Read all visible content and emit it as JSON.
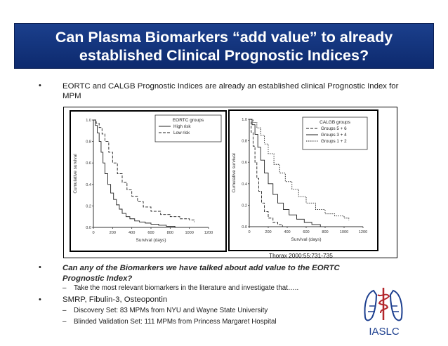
{
  "title": {
    "line1": "Can Plasma Biomarkers “add value” to already",
    "line2": "established Clinical Prognostic Indices?"
  },
  "bullets": {
    "b1": "EORTC and CALGB Prognostic Indices are already an established clinical Prognostic Index for MPM",
    "b2_line1": "Can any of the Biomarkers we have talked about add value to the EORTC",
    "b2_line2": "Prognostic Index?",
    "b2_sub": "Take the most relevant biomarkers in the literature  and investigate that…..",
    "b3": "SMRP, Fibulin-3, Osteopontin",
    "b3_sub1": "Discovery Set: 83 MPMs from NYU and Wayne State University",
    "b3_sub2": "Blinded Validation Set: 111 MPMs from Princess Margaret Hospital",
    "bullet_char": "•",
    "dash_char": "–"
  },
  "citation": "Thorax 2000;55:731-735",
  "logo_text": "IASLC",
  "colors": {
    "title_bg": "#12337a",
    "title_text": "#ffffff",
    "logo_red": "#b3262b",
    "logo_blue": "#1d3f8f"
  },
  "chart_data": [
    {
      "type": "line",
      "legend_title": "EORTC groups",
      "legend_position": "top-right",
      "xlabel": "Survival (days)",
      "ylabel": "Cumulative survival",
      "x_ticks": [
        "0",
        "200",
        "400",
        "600",
        "800",
        "1000",
        "1200"
      ],
      "y_ticks": [
        "0.0",
        "0.2",
        "0.4",
        "0.6",
        "0.8",
        "1.0"
      ],
      "xlim": [
        0,
        1200
      ],
      "ylim": [
        0,
        1
      ],
      "series": [
        {
          "name": "High risk",
          "style": "solid",
          "x": [
            0,
            20,
            40,
            60,
            80,
            100,
            120,
            150,
            180,
            210,
            240,
            270,
            300,
            340,
            380,
            430,
            480,
            540,
            600,
            680,
            760,
            850
          ],
          "y": [
            1.0,
            0.95,
            0.88,
            0.8,
            0.7,
            0.6,
            0.5,
            0.4,
            0.32,
            0.26,
            0.21,
            0.17,
            0.13,
            0.1,
            0.08,
            0.06,
            0.05,
            0.04,
            0.03,
            0.02,
            0.01,
            0.0
          ]
        },
        {
          "name": "Low risk",
          "style": "dashed",
          "x": [
            0,
            30,
            60,
            90,
            120,
            160,
            200,
            250,
            300,
            350,
            400,
            460,
            520,
            600,
            700,
            800,
            900,
            1000,
            1050
          ],
          "y": [
            1.0,
            0.97,
            0.93,
            0.87,
            0.8,
            0.7,
            0.6,
            0.5,
            0.42,
            0.35,
            0.29,
            0.24,
            0.19,
            0.15,
            0.12,
            0.1,
            0.08,
            0.07,
            0.05
          ]
        }
      ]
    },
    {
      "type": "line",
      "legend_title": "CALGB groups",
      "legend_position": "top-right",
      "xlabel": "Survival (days)",
      "ylabel": "Cumulative survival",
      "x_ticks": [
        "0",
        "200",
        "400",
        "600",
        "800",
        "1000",
        "1200"
      ],
      "y_ticks": [
        "0.0",
        "0.2",
        "0.4",
        "0.6",
        "0.8",
        "1.0"
      ],
      "xlim": [
        0,
        1200
      ],
      "ylim": [
        0,
        1
      ],
      "series": [
        {
          "name": "Groups 5 + 6",
          "style": "dashed",
          "x": [
            0,
            20,
            40,
            60,
            80,
            100,
            130,
            160,
            200,
            250,
            300,
            350
          ],
          "y": [
            1.0,
            0.88,
            0.75,
            0.6,
            0.45,
            0.33,
            0.22,
            0.14,
            0.08,
            0.04,
            0.02,
            0.0
          ]
        },
        {
          "name": "Groups 3 + 4",
          "style": "solid",
          "x": [
            0,
            30,
            60,
            90,
            120,
            160,
            200,
            250,
            300,
            360,
            420,
            500,
            580,
            660,
            750
          ],
          "y": [
            1.0,
            0.95,
            0.86,
            0.74,
            0.62,
            0.5,
            0.4,
            0.3,
            0.22,
            0.16,
            0.11,
            0.07,
            0.04,
            0.02,
            0.0
          ]
        },
        {
          "name": "Groups 1 + 2",
          "style": "dotted",
          "x": [
            0,
            40,
            80,
            120,
            160,
            200,
            260,
            320,
            380,
            450,
            520,
            600,
            700,
            800,
            900,
            1000,
            1050
          ],
          "y": [
            1.0,
            0.97,
            0.92,
            0.85,
            0.77,
            0.68,
            0.58,
            0.5,
            0.42,
            0.35,
            0.28,
            0.22,
            0.16,
            0.12,
            0.1,
            0.08,
            0.06
          ]
        }
      ]
    }
  ]
}
